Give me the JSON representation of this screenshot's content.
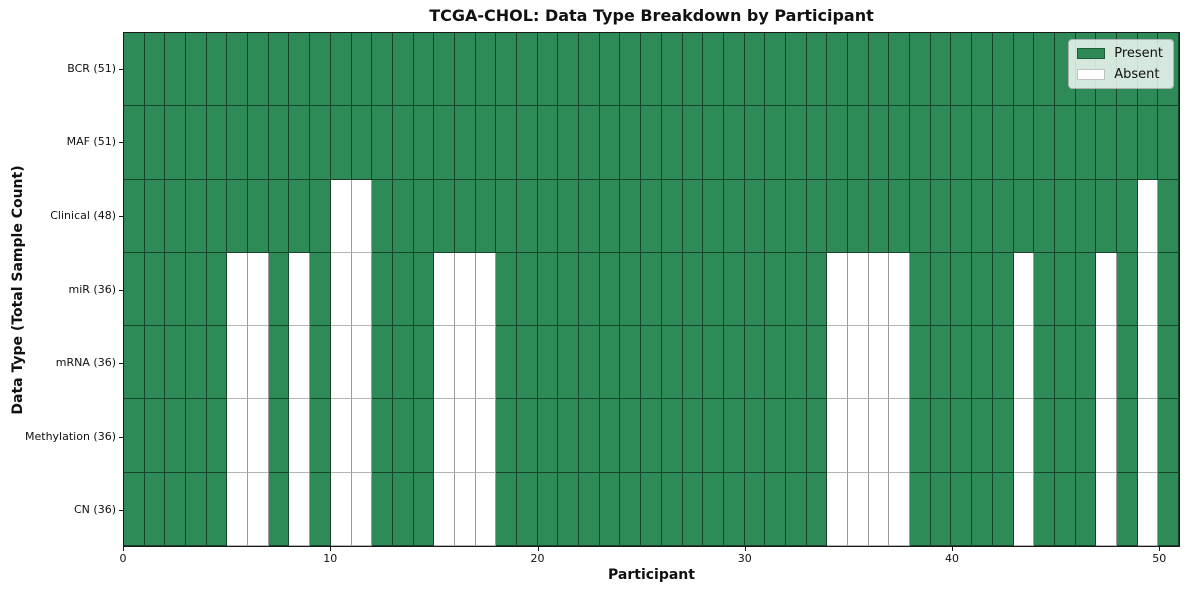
{
  "chart_data": {
    "type": "heatmap",
    "title": "TCGA-CHOL: Data Type Breakdown by Participant",
    "xlabel": "Participant",
    "ylabel": "Data Type (Total Sample Count)",
    "x_ticks": [
      0,
      10,
      20,
      30,
      40,
      50
    ],
    "x_range": [
      0,
      51
    ],
    "n_participants": 51,
    "grid": "on",
    "colors": {
      "present": "#2e8b57",
      "absent": "#ffffff",
      "plot_border": "#1a1a1a"
    },
    "legend": {
      "position": "upper right",
      "entries": [
        {
          "label": "Present",
          "color": "#2e8b57"
        },
        {
          "label": "Absent",
          "color": "#ffffff"
        }
      ]
    },
    "rows": [
      {
        "label": "BCR (51)",
        "present_count": 51,
        "absent_participants": []
      },
      {
        "label": "MAF (51)",
        "present_count": 51,
        "absent_participants": []
      },
      {
        "label": "Clinical (48)",
        "present_count": 48,
        "absent_participants": [
          10,
          11,
          49
        ]
      },
      {
        "label": "miR (36)",
        "present_count": 36,
        "absent_participants": [
          5,
          6,
          8,
          10,
          11,
          15,
          16,
          17,
          34,
          35,
          36,
          37,
          43,
          47,
          49
        ]
      },
      {
        "label": "mRNA (36)",
        "present_count": 36,
        "absent_participants": [
          5,
          6,
          8,
          10,
          11,
          15,
          16,
          17,
          34,
          35,
          36,
          37,
          43,
          47,
          49
        ]
      },
      {
        "label": "Methylation (36)",
        "present_count": 36,
        "absent_participants": [
          5,
          6,
          8,
          10,
          11,
          15,
          16,
          17,
          34,
          35,
          36,
          37,
          43,
          47,
          49
        ]
      },
      {
        "label": "CN (36)",
        "present_count": 36,
        "absent_participants": [
          5,
          6,
          8,
          10,
          11,
          15,
          16,
          17,
          34,
          35,
          36,
          37,
          43,
          47,
          49
        ]
      }
    ]
  }
}
